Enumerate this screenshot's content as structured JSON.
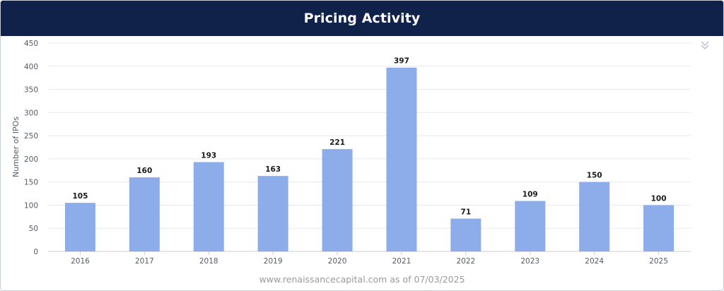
{
  "header": {
    "title": "Pricing Activity"
  },
  "footer": {
    "source": "www.renaissancecapital.com as of 07/03/2025"
  },
  "menu": {
    "icon": "double-chevron-down-icon"
  },
  "colors": {
    "header_bg": "#10224a",
    "bar": "#8dadea",
    "grid": "#e6e9ee"
  },
  "chart_data": {
    "type": "bar",
    "categories": [
      "2016",
      "2017",
      "2018",
      "2019",
      "2020",
      "2021",
      "2022",
      "2023",
      "2024",
      "2025"
    ],
    "values": [
      105,
      160,
      193,
      163,
      221,
      397,
      71,
      109,
      150,
      100
    ],
    "ylabel": "Number of IPOs",
    "xlabel": "",
    "ylim": [
      0,
      450
    ],
    "yticks": [
      0,
      50,
      100,
      150,
      200,
      250,
      300,
      350,
      400,
      450
    ],
    "data_labels": true,
    "grid": true,
    "legend": "none"
  }
}
